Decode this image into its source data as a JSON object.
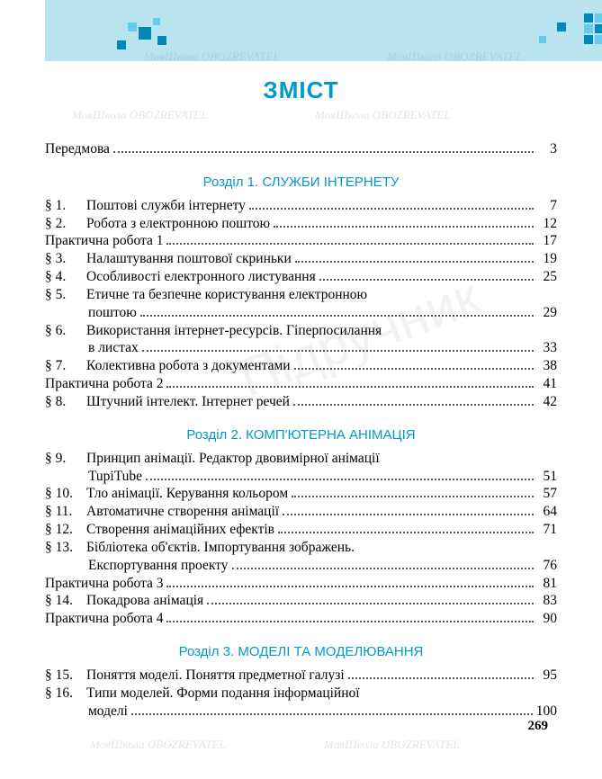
{
  "title": "ЗМІСТ",
  "page_number": "269",
  "colors": {
    "header_bg": "#b8e3ef",
    "accent": "#0099cc",
    "text": "#000000",
    "pixel_dark": "#0088bb",
    "pixel_light": "#66ccee"
  },
  "preface": {
    "text": "Передмова",
    "page": "3"
  },
  "sections": [
    {
      "title": "Розділ 1. СЛУЖБИ ІНТЕРНЕТУ",
      "entries": [
        {
          "label": "§ 1.",
          "text": "Поштові служби інтернету",
          "page": "7"
        },
        {
          "label": "§ 2.",
          "text": "Робота з електронною поштою",
          "page": "12"
        },
        {
          "label": "",
          "text": "Практична робота 1",
          "page": "17"
        },
        {
          "label": "§ 3.",
          "text": "Налаштування поштової скриньки",
          "page": "19"
        },
        {
          "label": "§ 4.",
          "text": "Особливості електронного листування",
          "page": "25"
        },
        {
          "label": "§ 5.",
          "text": "Етичне та безпечне користування електронною",
          "cont": "поштою",
          "page": "29"
        },
        {
          "label": "§ 6.",
          "text": "Використання інтернет-ресурсів. Гіперпосилання",
          "cont": "в листах",
          "page": "33"
        },
        {
          "label": "§ 7.",
          "text": "Колективна робота з документами",
          "page": "38"
        },
        {
          "label": "",
          "text": "Практична робота 2",
          "page": "41"
        },
        {
          "label": "§ 8.",
          "text": "Штучний інтелект. Інтернет речей",
          "page": "42"
        }
      ]
    },
    {
      "title": "Розділ 2. КОМП'ЮТЕРНА АНІМАЦІЯ",
      "entries": [
        {
          "label": "§ 9.",
          "text": "Принцип анімації. Редактор двовимірної анімації",
          "cont": "TupiTube",
          "page": "51"
        },
        {
          "label": "§ 10.",
          "text": "Тло анімації. Керування кольором",
          "page": "57"
        },
        {
          "label": "§ 11.",
          "text": "Автоматичне створення анімації",
          "page": "64"
        },
        {
          "label": "§ 12.",
          "text": "Створення анімаційних ефектів",
          "page": "71"
        },
        {
          "label": "§ 13.",
          "text": "Бібліотека об'єктів. Імпортування зображень.",
          "cont": "Експортування проекту",
          "page": "76"
        },
        {
          "label": "",
          "text": "Практична робота 3",
          "page": "81"
        },
        {
          "label": "§ 14.",
          "text": "Покадрова анімація",
          "page": "83"
        },
        {
          "label": "",
          "text": "Практична робота 4",
          "page": "90"
        }
      ]
    },
    {
      "title": "Розділ 3. МОДЕЛІ ТА МОДЕЛЮВАННЯ",
      "entries": [
        {
          "label": "§ 15.",
          "text": "Поняття моделі. Поняття предметної галузі",
          "page": "95"
        },
        {
          "label": "§ 16.",
          "text": "Типи моделей. Форми подання інформаційної",
          "cont": "моделі",
          "page": "100"
        }
      ]
    }
  ],
  "watermarks": {
    "small": "МояШкола OBOZREVATEL",
    "big": "Підручник"
  }
}
